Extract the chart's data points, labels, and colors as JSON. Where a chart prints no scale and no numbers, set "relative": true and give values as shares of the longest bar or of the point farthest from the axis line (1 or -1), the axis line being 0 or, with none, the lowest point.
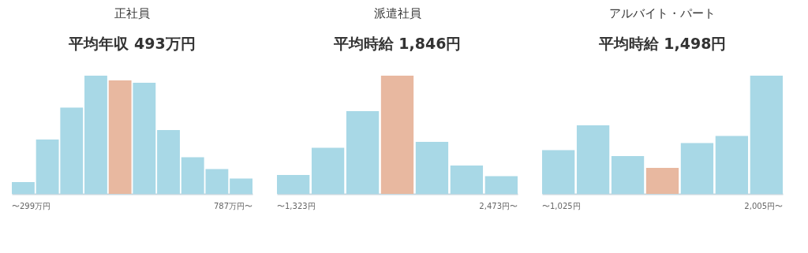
{
  "chart_data": [
    {
      "type": "bar",
      "title": "正社員",
      "subtitle": "平均年収 493万円",
      "relative": true,
      "categories": [
        "〜299万円",
        null,
        null,
        null,
        null,
        null,
        null,
        null,
        null,
        "787万円〜"
      ],
      "values": [
        0.1,
        0.46,
        0.73,
        1,
        0.96,
        0.94,
        0.54,
        0.31,
        0.21,
        0.13
      ],
      "colors": [
        "#a8d8e6",
        "#a8d8e6",
        "#a8d8e6",
        "#a8d8e6",
        "#e8b8a0",
        "#a8d8e6",
        "#a8d8e6",
        "#a8d8e6",
        "#a8d8e6",
        "#a8d8e6"
      ]
    },
    {
      "type": "bar",
      "title": "派遣社員",
      "subtitle": "平均時給 1,846円",
      "relative": true,
      "categories": [
        "〜1,323円",
        null,
        null,
        null,
        null,
        null,
        "2,473円〜"
      ],
      "values": [
        0.16,
        0.39,
        0.7,
        1,
        0.44,
        0.24,
        0.15
      ],
      "colors": [
        "#a8d8e6",
        "#a8d8e6",
        "#a8d8e6",
        "#e8b8a0",
        "#a8d8e6",
        "#a8d8e6",
        "#a8d8e6"
      ]
    },
    {
      "type": "bar",
      "title": "アルバイト・パート",
      "subtitle": "平均時給 1,498円",
      "relative": true,
      "categories": [
        "〜1,025円",
        null,
        null,
        null,
        null,
        null,
        "2,005円〜"
      ],
      "values": [
        0.37,
        0.58,
        0.32,
        0.22,
        0.43,
        0.49,
        1
      ],
      "colors": [
        "#a8d8e6",
        "#a8d8e6",
        "#a8d8e6",
        "#e8b8a0",
        "#a8d8e6",
        "#a8d8e6",
        "#a8d8e6"
      ]
    }
  ]
}
